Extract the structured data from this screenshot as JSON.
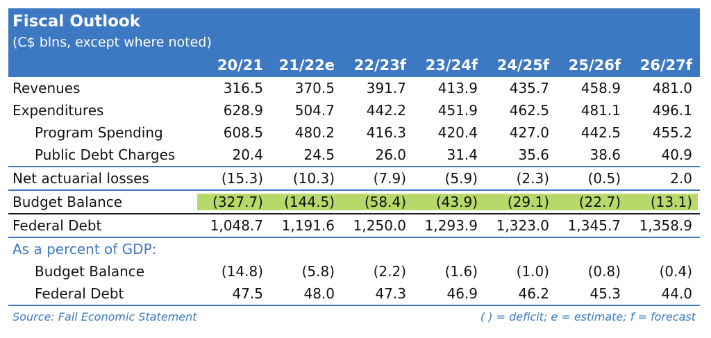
{
  "chart_data": {
    "type": "table",
    "title": "Fiscal Outlook",
    "subtitle": "(C$ blns, except where noted)",
    "columns": [
      "20/21",
      "21/22e",
      "22/23f",
      "23/24f",
      "24/25f",
      "25/26f",
      "26/27f"
    ],
    "rows": [
      {
        "label": "Revenues",
        "values": [
          "316.5",
          "370.5",
          "391.7",
          "413.9",
          "435.7",
          "458.9",
          "481.0"
        ]
      },
      {
        "label": "Expenditures",
        "values": [
          "628.9",
          "504.7",
          "442.2",
          "451.9",
          "462.5",
          "481.1",
          "496.1"
        ]
      },
      {
        "label": "Program Spending",
        "values": [
          "608.5",
          "480.2",
          "416.3",
          "420.4",
          "427.0",
          "442.5",
          "455.2"
        ]
      },
      {
        "label": "Public Debt Charges",
        "values": [
          "20.4",
          "24.5",
          "26.0",
          "31.4",
          "35.6",
          "38.6",
          "40.9"
        ]
      },
      {
        "label": "Net actuarial losses",
        "values": [
          "(15.3)",
          "(10.3)",
          "(7.9)",
          "(5.9)",
          "(2.3)",
          "(0.5)",
          "2.0"
        ]
      },
      {
        "label": "Budget Balance",
        "values": [
          "(327.7)",
          "(144.5)",
          "(58.4)",
          "(43.9)",
          "(29.1)",
          "(22.7)",
          "(13.1)"
        ]
      },
      {
        "label": "Federal Debt",
        "values": [
          "1,048.7",
          "1,191.6",
          "1,250.0",
          "1,293.9",
          "1,323.0",
          "1,345.7",
          "1,358.9"
        ]
      }
    ],
    "gdp_section_label": "As a percent of GDP:",
    "gdp_rows": [
      {
        "label": "Budget Balance",
        "values": [
          "(14.8)",
          "(5.8)",
          "(2.2)",
          "(1.6)",
          "(1.0)",
          "(0.8)",
          "(0.4)"
        ]
      },
      {
        "label": "Federal Debt",
        "values": [
          "47.5",
          "48.0",
          "47.3",
          "46.9",
          "46.2",
          "45.3",
          "44.0"
        ]
      }
    ],
    "source": "Source: Fall Economic Statement",
    "note": "( ) = deficit; e = estimate; f = forecast",
    "colors": {
      "header": "#3d78c3",
      "highlight": "#b6d969",
      "accent_text": "#3d78c3"
    }
  }
}
